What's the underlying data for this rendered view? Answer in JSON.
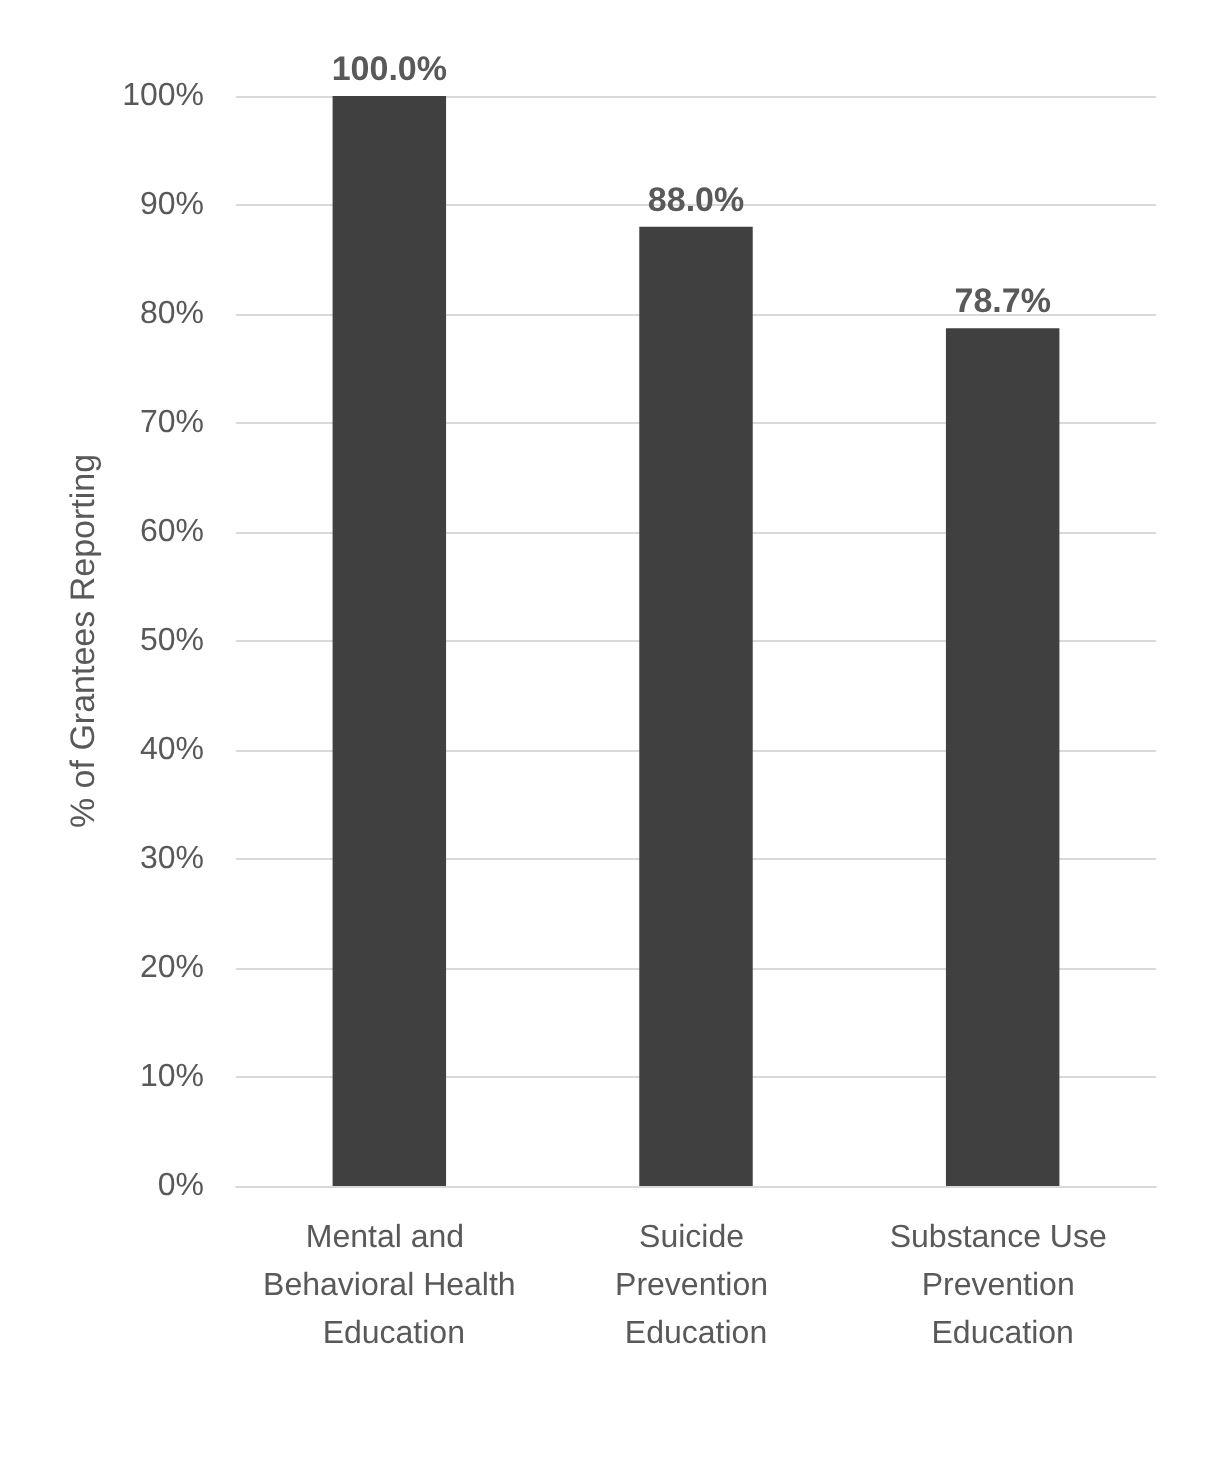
{
  "chart_data": {
    "type": "bar",
    "categories": [
      "Mental and Behavioral Health Education",
      "Suicide Prevention Education",
      "Substance Use Prevention Education"
    ],
    "values": [
      100,
      88,
      78.7
    ],
    "value_labels": [
      "100.0%",
      "88.0%",
      "78.7%"
    ],
    "color": "#404040",
    "ylabel": "% of Grantees Reporting",
    "ylim": [
      0,
      100
    ],
    "yticks": [
      {
        "value": 0,
        "label": "0%"
      },
      {
        "value": 10,
        "label": "10%"
      },
      {
        "value": 20,
        "label": "20%"
      },
      {
        "value": 30,
        "label": "30%"
      },
      {
        "value": 40,
        "label": "40%"
      },
      {
        "value": 50,
        "label": "50%"
      },
      {
        "value": 60,
        "label": "60%"
      },
      {
        "value": 70,
        "label": "70%"
      },
      {
        "value": 80,
        "label": "80%"
      },
      {
        "value": 90,
        "label": "90%"
      },
      {
        "value": 100,
        "label": "100%"
      }
    ],
    "grid": "y"
  }
}
